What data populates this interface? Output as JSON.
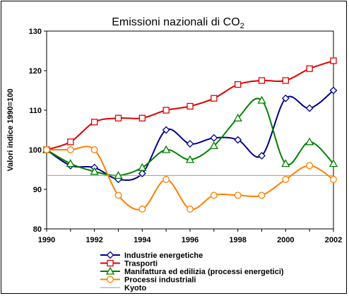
{
  "chart_data": {
    "type": "line",
    "title": "Emissioni nazionali di CO",
    "title_subscript": "2",
    "xlabel": "",
    "ylabel": "Valori indice 1990=100",
    "x": [
      1990,
      1991,
      1992,
      1993,
      1994,
      1995,
      1996,
      1997,
      1998,
      1999,
      2000,
      2001,
      2002
    ],
    "x_tick_labels": [
      "1990",
      "1992",
      "1994",
      "1996",
      "1998",
      "2000",
      "2002"
    ],
    "y_tick_labels": [
      "80",
      "90",
      "100",
      "110",
      "120",
      "130"
    ],
    "xlim": [
      1990,
      2002
    ],
    "ylim": [
      80,
      130
    ],
    "grid": false,
    "plot_background": "#ffffff",
    "legend_position": "bottom",
    "series": [
      {
        "name": "Industrie energetiche",
        "color": "#00008b",
        "marker": "diamond",
        "values": [
          100,
          96,
          95.5,
          92.5,
          94,
          105,
          101.5,
          103,
          102.5,
          98.5,
          113,
          110.5,
          115
        ]
      },
      {
        "name": "Trasporti",
        "color": "#e00000",
        "marker": "square",
        "values": [
          100,
          102,
          107,
          108,
          108,
          110,
          111,
          113,
          116.5,
          117.5,
          117.5,
          120.5,
          122.5
        ]
      },
      {
        "name": "Manifattura ed edilizia (processi energetici)",
        "color": "#008000",
        "marker": "triangle",
        "values": [
          100,
          96.5,
          94.5,
          93.5,
          95.5,
          100,
          97.5,
          101,
          108,
          112.5,
          96.5,
          102,
          96.5
        ]
      },
      {
        "name": "Processi industriali",
        "color": "#ff7f00",
        "marker": "circle",
        "values": [
          100,
          100,
          100,
          88.5,
          85,
          92.5,
          85,
          88.5,
          88.5,
          88.5,
          92.5,
          96,
          92.5
        ]
      },
      {
        "name": "Kyoto",
        "color": "#999999",
        "marker": "none",
        "values": [
          93.5,
          93.5,
          93.5,
          93.5,
          93.5,
          93.5,
          93.5,
          93.5,
          93.5,
          93.5,
          93.5,
          93.5,
          93.5
        ]
      }
    ]
  }
}
